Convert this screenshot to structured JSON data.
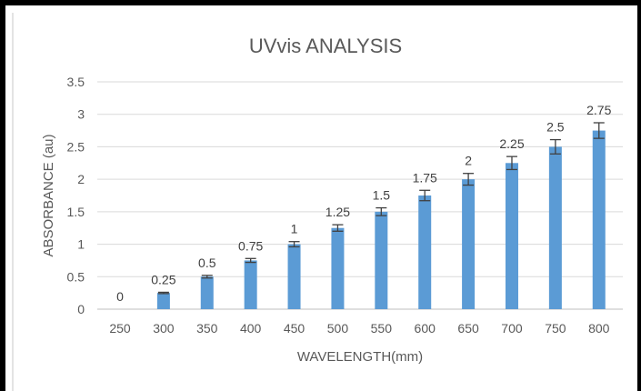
{
  "chart_data": {
    "type": "bar",
    "title": "UVvis ANALYSIS",
    "xlabel": "WAVELENGTH(mm)",
    "ylabel": "ABSORBANCE (au)",
    "categories": [
      "250",
      "300",
      "350",
      "400",
      "450",
      "500",
      "550",
      "600",
      "650",
      "700",
      "750",
      "800"
    ],
    "values": [
      0,
      0.25,
      0.5,
      0.75,
      1,
      1.25,
      1.5,
      1.75,
      2,
      2.25,
      2.5,
      2.75
    ],
    "data_labels": [
      "0",
      "0.25",
      "0.5",
      "0.75",
      "1",
      "1.25",
      "1.5",
      "1.75",
      "2",
      "2.25",
      "2.5",
      "2.75"
    ],
    "error_bars": [
      0,
      0.01,
      0.02,
      0.03,
      0.04,
      0.05,
      0.06,
      0.08,
      0.09,
      0.1,
      0.11,
      0.12
    ],
    "ylim": [
      0,
      3.5
    ],
    "yticks": [
      "0",
      "0.5",
      "1",
      "1.5",
      "2",
      "2.5",
      "3",
      "3.5"
    ],
    "grid": true,
    "legend": "none",
    "bar_color": "#5b9bd5"
  }
}
